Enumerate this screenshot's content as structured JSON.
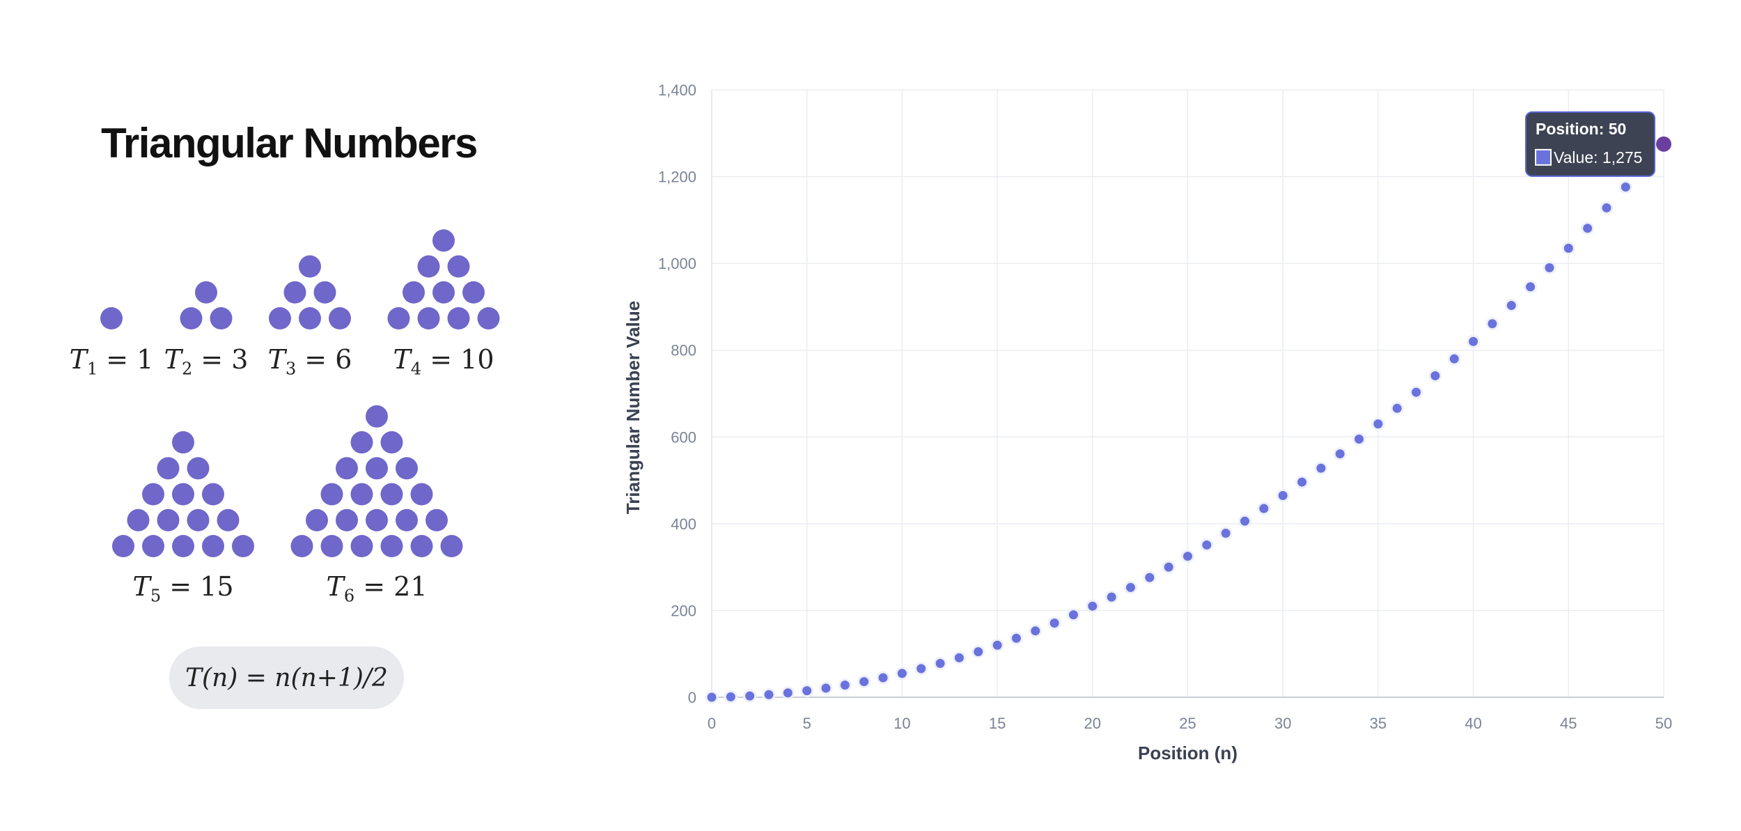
{
  "left": {
    "title": "Triangular Numbers",
    "dot_color": "#6f67c9",
    "triangles": [
      {
        "n": 1,
        "value": 1,
        "label_n": "1",
        "label_value": "1"
      },
      {
        "n": 2,
        "value": 3,
        "label_n": "2",
        "label_value": "3"
      },
      {
        "n": 3,
        "value": 6,
        "label_n": "3",
        "label_value": "6"
      },
      {
        "n": 4,
        "value": 10,
        "label_n": "4",
        "label_value": "10"
      },
      {
        "n": 5,
        "value": 15,
        "label_n": "5",
        "label_value": "15"
      },
      {
        "n": 6,
        "value": 21,
        "label_n": "6",
        "label_value": "21"
      }
    ],
    "formula": "T(n) = n(n+1)/2"
  },
  "chart_data": {
    "type": "scatter",
    "xlabel": "Position (n)",
    "ylabel": "Triangular Number Value",
    "xlim": [
      0,
      50
    ],
    "ylim": [
      0,
      1400
    ],
    "x_ticks": [
      "0",
      "5",
      "10",
      "15",
      "20",
      "25",
      "30",
      "35",
      "40",
      "45",
      "50"
    ],
    "y_ticks": [
      "0",
      "200",
      "400",
      "600",
      "800",
      "1,000",
      "1,200",
      "1,400"
    ],
    "grid": true,
    "point_color": "#6a72dc",
    "highlight_color": "#6b3fa0",
    "x": [
      0,
      1,
      2,
      3,
      4,
      5,
      6,
      7,
      8,
      9,
      10,
      11,
      12,
      13,
      14,
      15,
      16,
      17,
      18,
      19,
      20,
      21,
      22,
      23,
      24,
      25,
      26,
      27,
      28,
      29,
      30,
      31,
      32,
      33,
      34,
      35,
      36,
      37,
      38,
      39,
      40,
      41,
      42,
      43,
      44,
      45,
      46,
      47,
      48,
      49,
      50
    ],
    "y": [
      0,
      1,
      3,
      6,
      10,
      15,
      21,
      28,
      36,
      45,
      55,
      66,
      78,
      91,
      105,
      120,
      136,
      153,
      171,
      190,
      210,
      231,
      253,
      276,
      300,
      325,
      351,
      378,
      406,
      435,
      465,
      496,
      528,
      561,
      595,
      630,
      666,
      703,
      741,
      780,
      820,
      861,
      903,
      946,
      990,
      1035,
      1081,
      1128,
      1176,
      1225,
      1275
    ],
    "tooltip": {
      "title": "Position: 50",
      "value_text": "Value: 1,275",
      "swatch_color": "#6a72dc",
      "background": "#3d4352"
    }
  }
}
